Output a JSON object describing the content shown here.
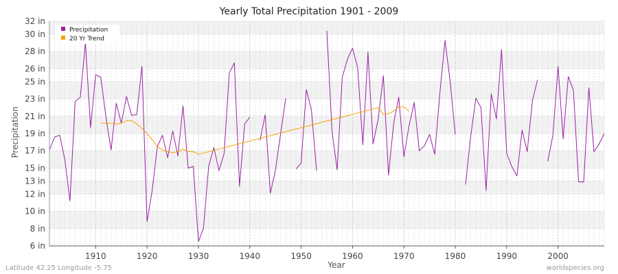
{
  "chart_data": {
    "type": "line",
    "title": "Yearly Total Precipitation 1901 - 2009",
    "xlabel": "Year",
    "ylabel": "Precipitation",
    "xlim": [
      1901,
      2009
    ],
    "ylim": [
      6,
      32
    ],
    "y_ticks": [
      {
        "value": 6,
        "label": "6 in"
      },
      {
        "value": 8,
        "label": "8 in"
      },
      {
        "value": 10,
        "label": "10 in"
      },
      {
        "value": 12,
        "label": "12 in"
      },
      {
        "value": 13.5,
        "label": "13 in"
      },
      {
        "value": 15,
        "label": "15 in"
      },
      {
        "value": 17,
        "label": "17 in"
      },
      {
        "value": 19,
        "label": "19 in"
      },
      {
        "value": 21,
        "label": "21 in"
      },
      {
        "value": 23,
        "label": "23 in"
      },
      {
        "value": 25,
        "label": "25 in"
      },
      {
        "value": 26.5,
        "label": "26 in"
      },
      {
        "value": 28.5,
        "label": "28 in"
      },
      {
        "value": 30.5,
        "label": "30 in"
      },
      {
        "value": 32,
        "label": "32 in"
      }
    ],
    "x_ticks": [
      1910,
      1920,
      1930,
      1940,
      1950,
      1960,
      1970,
      1980,
      1990,
      2000
    ],
    "grid": true,
    "legend_position": "top-left",
    "series": [
      {
        "name": "Precipitation",
        "color": "#9a1fa3",
        "points": [
          [
            1901,
            17.1
          ],
          [
            1902,
            18.6
          ],
          [
            1903,
            18.8
          ],
          [
            1904,
            16.0
          ],
          [
            1905,
            11.2
          ],
          [
            1906,
            22.7
          ],
          [
            1907,
            23.2
          ],
          [
            1908,
            29.5
          ],
          [
            1909,
            19.7
          ],
          [
            1910,
            25.8
          ],
          [
            1911,
            25.5
          ],
          [
            1912,
            20.9
          ],
          [
            1913,
            17.1
          ],
          [
            1914,
            22.5
          ],
          [
            1915,
            20.2
          ],
          [
            1916,
            23.3
          ],
          [
            1917,
            21.1
          ],
          [
            1918,
            21.2
          ],
          [
            1919,
            26.8
          ],
          [
            1920,
            8.8
          ],
          [
            1921,
            12.4
          ],
          [
            1922,
            17.5
          ],
          [
            1923,
            18.8
          ],
          [
            1924,
            16.2
          ],
          [
            1925,
            19.3
          ],
          [
            1926,
            16.4
          ],
          [
            1927,
            22.2
          ],
          [
            1928,
            15.0
          ],
          [
            1929,
            15.2
          ],
          [
            1930,
            6.5
          ],
          [
            1931,
            8.1
          ],
          [
            1932,
            15.2
          ],
          [
            1933,
            17.4
          ],
          [
            1934,
            14.7
          ],
          [
            1935,
            16.7
          ],
          [
            1936,
            26.0
          ],
          [
            1937,
            27.2
          ],
          [
            1938,
            12.9
          ],
          [
            1939,
            20.1
          ],
          [
            1940,
            20.9
          ],
          [
            1941,
            null
          ],
          [
            1942,
            18.2
          ],
          [
            1943,
            21.2
          ],
          [
            1944,
            12.1
          ],
          [
            1945,
            14.8
          ],
          [
            1946,
            19.0
          ],
          [
            1947,
            23.1
          ],
          [
            1948,
            null
          ],
          [
            1949,
            14.9
          ],
          [
            1950,
            15.6
          ],
          [
            1951,
            24.1
          ],
          [
            1952,
            21.7
          ],
          [
            1953,
            14.7
          ],
          [
            1954,
            null
          ],
          [
            1955,
            30.9
          ],
          [
            1956,
            19.3
          ],
          [
            1957,
            14.8
          ],
          [
            1958,
            25.5
          ],
          [
            1959,
            27.6
          ],
          [
            1960,
            28.9
          ],
          [
            1961,
            26.6
          ],
          [
            1962,
            17.7
          ],
          [
            1963,
            28.4
          ],
          [
            1964,
            17.8
          ],
          [
            1965,
            20.7
          ],
          [
            1966,
            25.7
          ],
          [
            1967,
            14.2
          ],
          [
            1968,
            20.2
          ],
          [
            1969,
            23.2
          ],
          [
            1970,
            16.3
          ],
          [
            1971,
            19.9
          ],
          [
            1972,
            22.6
          ],
          [
            1973,
            17.0
          ],
          [
            1974,
            17.6
          ],
          [
            1975,
            18.9
          ],
          [
            1976,
            16.6
          ],
          [
            1977,
            23.7
          ],
          [
            1978,
            29.8
          ],
          [
            1979,
            25.0
          ],
          [
            1980,
            18.9
          ],
          [
            1981,
            null
          ],
          [
            1982,
            13.1
          ],
          [
            1983,
            18.7
          ],
          [
            1984,
            23.1
          ],
          [
            1985,
            22.0
          ],
          [
            1986,
            12.4
          ],
          [
            1987,
            23.6
          ],
          [
            1988,
            20.7
          ],
          [
            1989,
            28.7
          ],
          [
            1990,
            16.7
          ],
          [
            1991,
            15.2
          ],
          [
            1992,
            14.1
          ],
          [
            1993,
            19.4
          ],
          [
            1994,
            16.9
          ],
          [
            1995,
            22.8
          ],
          [
            1996,
            25.2
          ],
          [
            1997,
            null
          ],
          [
            1998,
            15.8
          ],
          [
            1999,
            18.8
          ],
          [
            2000,
            26.8
          ],
          [
            2001,
            18.4
          ],
          [
            2002,
            25.6
          ],
          [
            2003,
            24.0
          ],
          [
            2004,
            13.4
          ],
          [
            2005,
            13.4
          ],
          [
            2006,
            24.3
          ],
          [
            2007,
            16.9
          ],
          [
            2008,
            17.8
          ],
          [
            2009,
            19.0
          ]
        ]
      },
      {
        "name": "20 Yr Trend",
        "color": "#f5a300",
        "points": [
          [
            1911,
            20.2
          ],
          [
            1912,
            20.2
          ],
          [
            1913,
            20.2
          ],
          [
            1914,
            20.1
          ],
          [
            1915,
            20.2
          ],
          [
            1916,
            20.5
          ],
          [
            1917,
            20.5
          ],
          [
            1918,
            20.1
          ],
          [
            1919,
            19.6
          ],
          [
            1920,
            19.0
          ],
          [
            1921,
            18.3
          ],
          [
            1922,
            17.5
          ],
          [
            1923,
            17.1
          ],
          [
            1924,
            16.9
          ],
          [
            1925,
            16.8
          ],
          [
            1926,
            16.9
          ],
          [
            1927,
            17.2
          ],
          [
            1928,
            16.9
          ],
          [
            1929,
            16.9
          ],
          [
            1930,
            16.6
          ],
          [
            1965,
            22.0
          ],
          [
            1966,
            21.2
          ],
          [
            1967,
            21.3
          ],
          [
            1968,
            21.6
          ],
          [
            1969,
            22.1
          ],
          [
            1970,
            22.1
          ],
          [
            1971,
            21.6
          ]
        ]
      }
    ]
  },
  "footer": {
    "left": "Latitude 42.25 Longitude -5.75",
    "right": "worldspecies.org"
  }
}
